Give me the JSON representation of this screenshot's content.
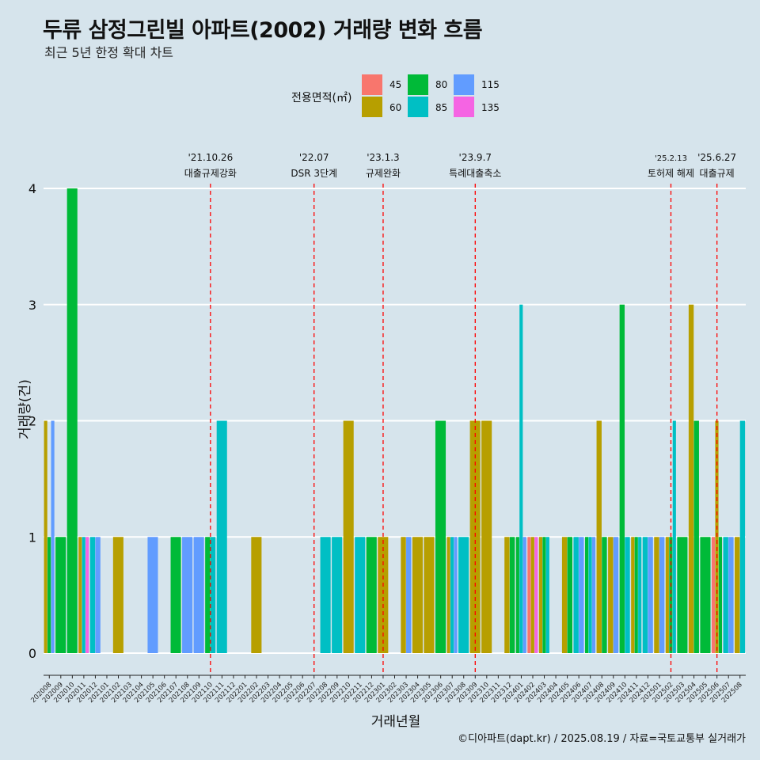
{
  "title": "두류 삼정그린빌 아파트(2002) 거래량 변화 흐름",
  "subtitle": "최근 5년 한정 확대 차트",
  "legend": {
    "title": "전용면적(㎡)",
    "items": [
      {
        "label": "45",
        "color": "#f8766d"
      },
      {
        "label": "60",
        "color": "#b79f00"
      },
      {
        "label": "80",
        "color": "#00ba38"
      },
      {
        "label": "85",
        "color": "#00bfc4"
      },
      {
        "label": "115",
        "color": "#619cff"
      },
      {
        "label": "135",
        "color": "#f564e3"
      }
    ]
  },
  "caption": "©디아파트(dapt.kr) / 2025.08.19 / 자료=국토교통부 실거래가",
  "chart_data": {
    "type": "bar",
    "title": "두류 삼정그린빌 아파트(2002) 거래량 변화 흐름",
    "subtitle": "최근 5년 한정 확대 차트",
    "xlabel": "거래년월",
    "ylabel": "거래량(건)",
    "ylim": [
      0,
      4
    ],
    "y_ticks": [
      0,
      1,
      2,
      3,
      4
    ],
    "grid": true,
    "legend_position": "top",
    "categories": [
      "202008",
      "202009",
      "202010",
      "202011",
      "202012",
      "202101",
      "202102",
      "202103",
      "202104",
      "202105",
      "202106",
      "202107",
      "202108",
      "202109",
      "202110",
      "202111",
      "202112",
      "202201",
      "202202",
      "202203",
      "202204",
      "202205",
      "202206",
      "202207",
      "202208",
      "202209",
      "202210",
      "202211",
      "202212",
      "202301",
      "202302",
      "202303",
      "202304",
      "202305",
      "202306",
      "202307",
      "202308",
      "202309",
      "202310",
      "202311",
      "202312",
      "202401",
      "202402",
      "202403",
      "202404",
      "202405",
      "202406",
      "202407",
      "202408",
      "202409",
      "202410",
      "202411",
      "202412",
      "202501",
      "202502",
      "202503",
      "202504",
      "202505",
      "202506",
      "202507",
      "202508"
    ],
    "series": [
      {
        "name": "45",
        "values": [
          0,
          0,
          0,
          0,
          0,
          0,
          0,
          0,
          0,
          0,
          0,
          0,
          0,
          0,
          0,
          0,
          0,
          0,
          0,
          0,
          0,
          0,
          0,
          0,
          0,
          0,
          0,
          0,
          0,
          0,
          0,
          0,
          0,
          0,
          0,
          0,
          0,
          0,
          0,
          0,
          0,
          0,
          1,
          0,
          0,
          0,
          0,
          0,
          0,
          0,
          0,
          0,
          0,
          0,
          0,
          0,
          0,
          0,
          1,
          0,
          0
        ]
      },
      {
        "name": "60",
        "values": [
          2,
          0,
          0,
          1,
          0,
          0,
          1,
          0,
          0,
          0,
          0,
          0,
          0,
          0,
          0,
          0,
          0,
          0,
          1,
          0,
          0,
          0,
          0,
          0,
          0,
          0,
          2,
          0,
          0,
          1,
          0,
          1,
          1,
          1,
          0,
          1,
          0,
          2,
          2,
          0,
          1,
          0,
          1,
          1,
          0,
          1,
          0,
          0,
          2,
          1,
          0,
          1,
          0,
          1,
          1,
          0,
          3,
          0,
          2,
          0,
          1
        ]
      },
      {
        "name": "80",
        "values": [
          1,
          1,
          4,
          0,
          0,
          0,
          0,
          0,
          0,
          0,
          0,
          1,
          0,
          0,
          1,
          0,
          0,
          0,
          0,
          0,
          0,
          0,
          0,
          0,
          0,
          0,
          0,
          0,
          1,
          0,
          0,
          0,
          0,
          0,
          2,
          0,
          0,
          0,
          0,
          0,
          1,
          1,
          0,
          1,
          0,
          1,
          0,
          1,
          1,
          0,
          3,
          1,
          0,
          0,
          1,
          1,
          2,
          1,
          1,
          0,
          0
        ]
      },
      {
        "name": "85",
        "values": [
          0,
          0,
          0,
          1,
          1,
          0,
          0,
          0,
          0,
          0,
          0,
          0,
          0,
          0,
          1,
          2,
          0,
          0,
          0,
          0,
          0,
          0,
          0,
          0,
          1,
          1,
          0,
          1,
          0,
          0,
          0,
          0,
          0,
          0,
          0,
          1,
          1,
          0,
          0,
          0,
          0,
          3,
          0,
          1,
          0,
          0,
          1,
          1,
          0,
          0,
          1,
          1,
          1,
          0,
          2,
          0,
          0,
          0,
          0,
          1,
          2
        ]
      },
      {
        "name": "115",
        "values": [
          2,
          0,
          0,
          0,
          1,
          0,
          0,
          0,
          0,
          1,
          0,
          0,
          1,
          1,
          0,
          0,
          0,
          0,
          0,
          0,
          0,
          0,
          0,
          0,
          0,
          0,
          0,
          0,
          0,
          0,
          0,
          1,
          0,
          0,
          0,
          1,
          0,
          0,
          0,
          0,
          0,
          1,
          0,
          0,
          0,
          0,
          1,
          1,
          0,
          1,
          0,
          0,
          1,
          1,
          0,
          0,
          0,
          0,
          0,
          1,
          0
        ]
      },
      {
        "name": "135",
        "values": [
          0,
          0,
          0,
          1,
          0,
          0,
          0,
          0,
          0,
          0,
          0,
          0,
          0,
          0,
          0,
          0,
          0,
          0,
          0,
          0,
          0,
          0,
          0,
          0,
          0,
          0,
          0,
          0,
          0,
          0,
          0,
          0,
          0,
          0,
          0,
          0,
          0,
          0,
          0,
          0,
          0,
          0,
          1,
          0,
          0,
          0,
          0,
          0,
          0,
          0,
          0,
          0,
          0,
          0,
          0,
          0,
          0,
          0,
          0,
          0,
          0
        ]
      }
    ],
    "annotations": [
      {
        "date": "'21.10.26",
        "label": "대출규제강화",
        "x": "202110"
      },
      {
        "date": "'22.07",
        "label": "DSR 3단계",
        "x": "202207"
      },
      {
        "date": "'23.1.3",
        "label": "규제완화",
        "x": "202301"
      },
      {
        "date": "'23.9.7",
        "label": "특례대출축소",
        "x": "202309"
      },
      {
        "date": "'25.2.13",
        "label": "토허제 해제",
        "x": "202502"
      },
      {
        "date": "'25.6.27",
        "label": "대출규제",
        "x": "202506"
      }
    ]
  }
}
